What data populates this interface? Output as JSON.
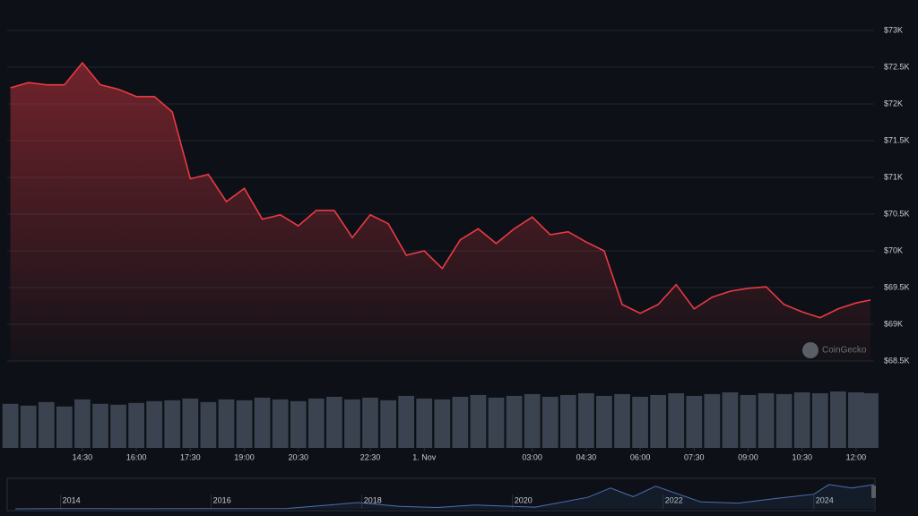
{
  "chart_data": [
    {
      "type": "line",
      "color": "#ea3943",
      "grid": true,
      "x": [
        12.5,
        13,
        13.5,
        14,
        14.5,
        15,
        15.5,
        16,
        16.5,
        17,
        17.5,
        18,
        18.5,
        19,
        19.5,
        20,
        20.5,
        21,
        21.5,
        22,
        22.5,
        23,
        23.5,
        24,
        24.5,
        25,
        25.5,
        26,
        26.5,
        27,
        27.5,
        28,
        28.5,
        29,
        29.5,
        30,
        30.5,
        31,
        31.5,
        32,
        32.5,
        33,
        33.5,
        34,
        34.5,
        35,
        35.5,
        36,
        36.4
      ],
      "values": [
        72220,
        72290,
        72260,
        72260,
        72560,
        72260,
        72200,
        72100,
        72100,
        71890,
        70980,
        71040,
        70670,
        70850,
        70430,
        70490,
        70340,
        70550,
        70550,
        70180,
        70490,
        70370,
        69940,
        70000,
        69760,
        70150,
        70300,
        70100,
        70300,
        70460,
        70220,
        70260,
        70120,
        70000,
        69270,
        69150,
        69270,
        69540,
        69210,
        69370,
        69450,
        69490,
        69510,
        69270,
        69170,
        69090,
        69210,
        69290,
        69330
      ],
      "volume": [
        50,
        48,
        52,
        47,
        55,
        50,
        49,
        51,
        53,
        54,
        56,
        52,
        55,
        54,
        57,
        55,
        53,
        56,
        58,
        55,
        57,
        54,
        59,
        56,
        55,
        58,
        60,
        57,
        59,
        61,
        58,
        60,
        62,
        59,
        61,
        58,
        60,
        62,
        59,
        61,
        63,
        60,
        62,
        61,
        63,
        62,
        64,
        63,
        62
      ],
      "xlim": [
        12.41,
        36.5
      ],
      "xticks": [
        {
          "value": 14.5,
          "label": "14:30"
        },
        {
          "value": 16,
          "label": "16:00"
        },
        {
          "value": 17.5,
          "label": "17:30"
        },
        {
          "value": 19,
          "label": "19:00"
        },
        {
          "value": 20.5,
          "label": "20:30"
        },
        {
          "value": 22.5,
          "label": "22:30"
        },
        {
          "value": 24,
          "label": "1. Nov"
        },
        {
          "value": 27,
          "label": "03:00"
        },
        {
          "value": 28.5,
          "label": "04:30"
        },
        {
          "value": 30,
          "label": "06:00"
        },
        {
          "value": 31.5,
          "label": "07:30"
        },
        {
          "value": 33,
          "label": "09:00"
        },
        {
          "value": 34.5,
          "label": "10:30"
        },
        {
          "value": 36,
          "label": "12:00"
        }
      ],
      "ylim": [
        68500,
        73000
      ],
      "yticks": [
        {
          "value": 68500,
          "label": "$68.5K"
        },
        {
          "value": 69000,
          "label": "$69K"
        },
        {
          "value": 69500,
          "label": "$69.5K"
        },
        {
          "value": 70000,
          "label": "$70K"
        },
        {
          "value": 70500,
          "label": "$70.5K"
        },
        {
          "value": 71000,
          "label": "$71K"
        },
        {
          "value": 71500,
          "label": "$71.5K"
        },
        {
          "value": 72000,
          "label": "$72K"
        },
        {
          "value": 72500,
          "label": "$72.5K"
        },
        {
          "value": 73000,
          "label": "$73K"
        }
      ],
      "watermark": "CoinGecko"
    },
    {
      "type": "navigator",
      "color": "#4a6fb0",
      "x": [
        2013.4,
        2014,
        2014.5,
        2015,
        2016,
        2017,
        2017.95,
        2018.5,
        2019,
        2019.5,
        2020,
        2020.3,
        2021,
        2021.3,
        2021.6,
        2021.9,
        2022.5,
        2023,
        2023.5,
        2024,
        2024.2,
        2024.5,
        2024.8
      ],
      "values": [
        100,
        800,
        600,
        250,
        430,
        1000,
        18000,
        7000,
        3800,
        11000,
        7200,
        5000,
        33000,
        60000,
        35000,
        65000,
        20000,
        16500,
        30000,
        42000,
        70000,
        60000,
        70000
      ],
      "xlim": [
        2013.29,
        2024.8
      ],
      "xticks": [
        2014,
        2016,
        2018,
        2020,
        2022,
        2024
      ],
      "ylim": [
        0,
        80000
      ]
    }
  ]
}
